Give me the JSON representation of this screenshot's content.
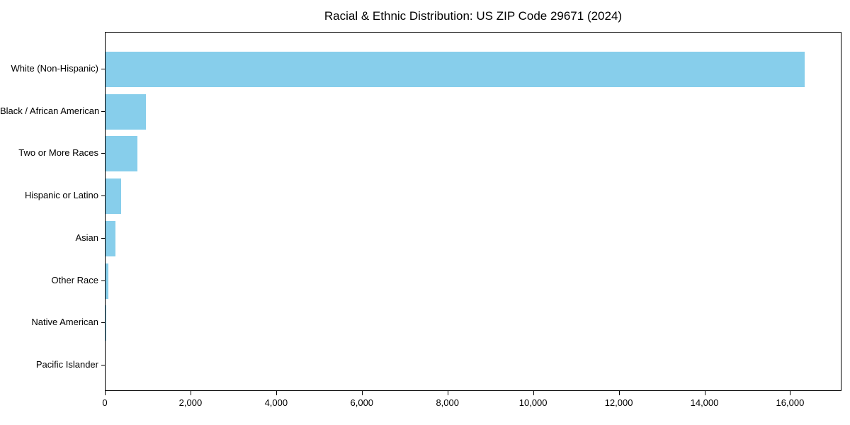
{
  "chart_data": {
    "type": "bar",
    "orientation": "horizontal",
    "title": "Racial & Ethnic Distribution: US ZIP Code 29671 (2024)",
    "categories": [
      "White (Non-Hispanic)",
      "Black / African American",
      "Two or More Races",
      "Hispanic or Latino",
      "Asian",
      "Other Race",
      "Native American",
      "Pacific Islander"
    ],
    "values": [
      16360,
      940,
      740,
      360,
      230,
      60,
      15,
      0
    ],
    "xlabel": "",
    "ylabel": "",
    "xlim": [
      0,
      17200
    ],
    "x_ticks": [
      0,
      2000,
      4000,
      6000,
      8000,
      10000,
      12000,
      14000,
      16000
    ],
    "x_tick_labels": [
      "0",
      "2,000",
      "4,000",
      "6,000",
      "8,000",
      "10,000",
      "12,000",
      "14,000",
      "16,000"
    ],
    "bar_color": "#87CEEB",
    "axis_color": "#000000",
    "grid": false,
    "legend": null
  }
}
